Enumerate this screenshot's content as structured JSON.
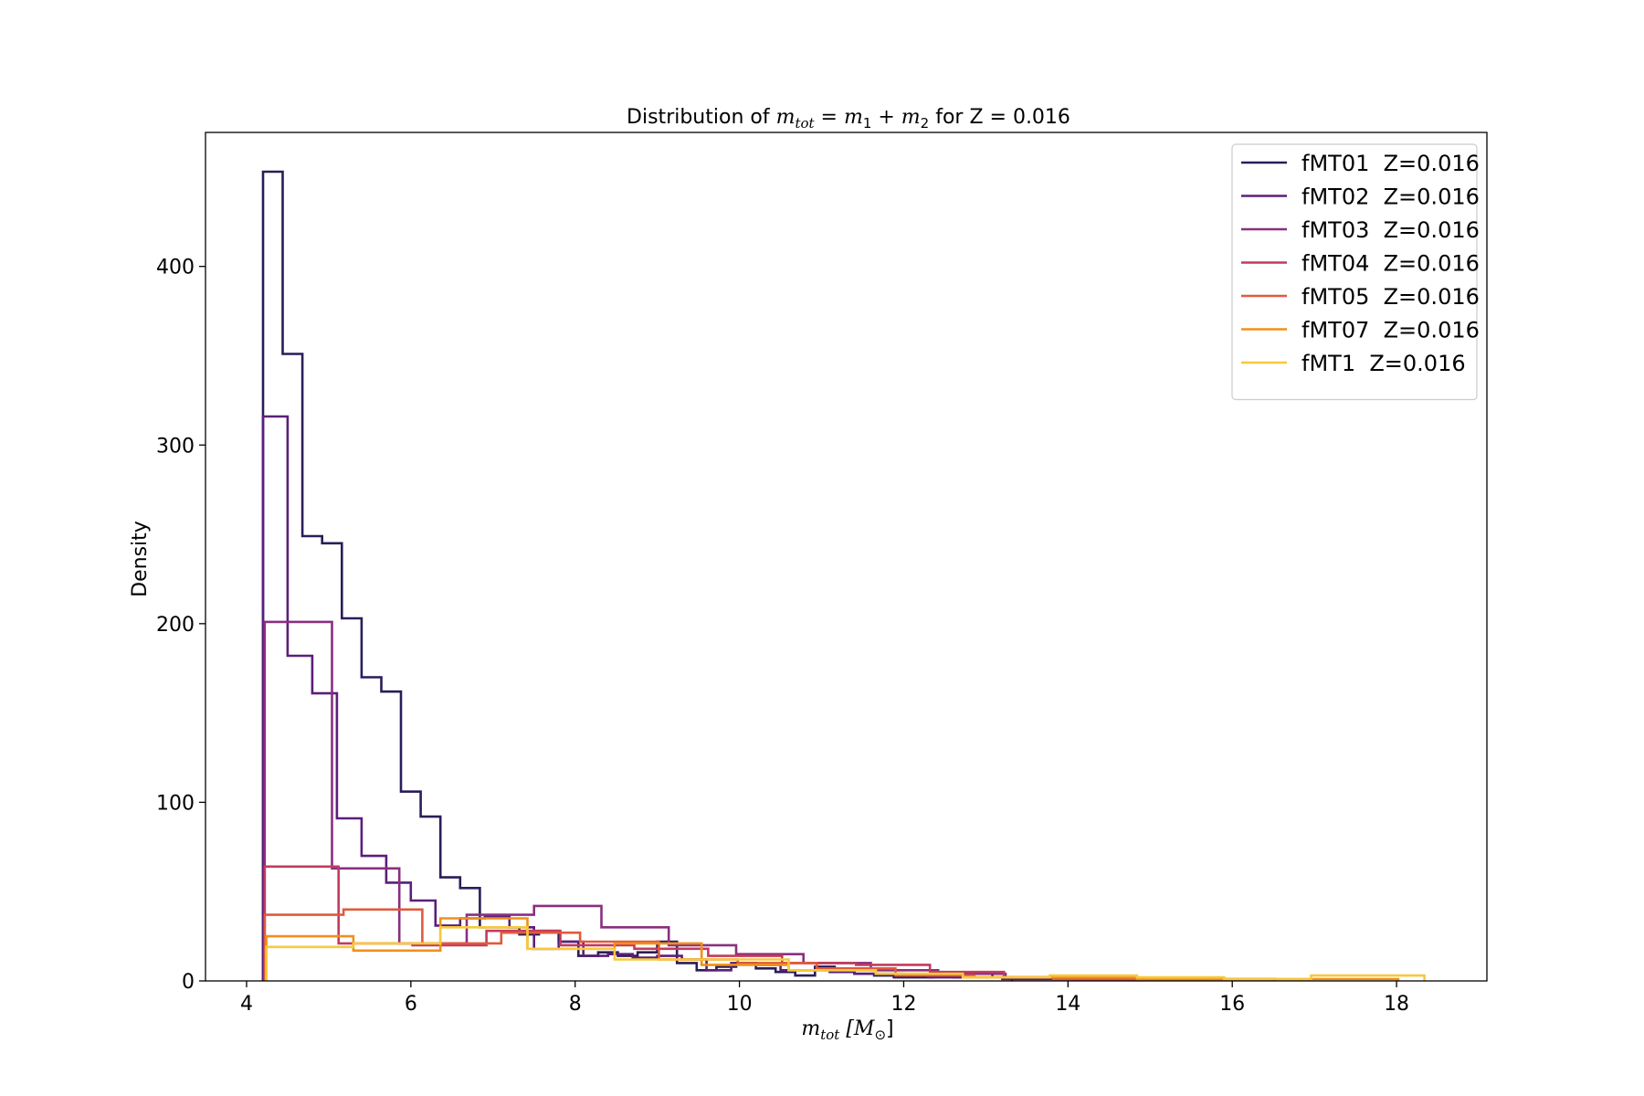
{
  "chart_data": {
    "type": "histogram-step",
    "title": {
      "prefix": "Distribution of ",
      "math": "m",
      "math_sub": "tot",
      "math_eq": " = m",
      "m1_sub": "1",
      "plus": " + m",
      "m2_sub": "2",
      "suffix": " for Z = 0.016"
    },
    "xlabel": {
      "main": "m",
      "sub": "tot",
      "unit": " [M",
      "unit_sub": "⊙",
      "close": "]"
    },
    "ylabel": "Density",
    "xlim": [
      3.5,
      19.1
    ],
    "ylim": [
      0,
      475
    ],
    "xticks": [
      4,
      6,
      8,
      10,
      12,
      14,
      16,
      18
    ],
    "yticks": [
      0,
      100,
      200,
      300,
      400
    ],
    "legend_position": "top-right",
    "series": [
      {
        "name": "fMT01  Z=0.016",
        "color": "#2b1d59",
        "edges": [
          4.2,
          4.44,
          4.68,
          4.92,
          5.16,
          5.4,
          5.64,
          5.88,
          6.12,
          6.36,
          6.6,
          6.84,
          7.08,
          7.32,
          7.56,
          7.8,
          8.04,
          8.28,
          8.52,
          8.76,
          9.0,
          9.24,
          9.48,
          9.72,
          9.96,
          10.2,
          10.44,
          10.68,
          10.92,
          11.16,
          11.4,
          11.64,
          11.88,
          12.12,
          12.36,
          12.6,
          12.84,
          13.08,
          13.32
        ],
        "values": [
          453,
          351,
          249,
          245,
          203,
          170,
          162,
          106,
          92,
          58,
          52,
          30,
          30,
          26,
          28,
          22,
          14,
          16,
          14,
          16,
          22,
          10,
          6,
          8,
          10,
          7,
          5,
          3,
          8,
          6,
          4,
          3,
          2,
          2,
          3,
          2,
          4,
          2
        ]
      },
      {
        "name": "fMT02  Z=0.016",
        "color": "#5a1f7a",
        "edges": [
          4.2,
          4.5,
          4.8,
          5.1,
          5.4,
          5.7,
          6.0,
          6.3,
          6.6,
          6.9,
          7.2,
          7.5,
          7.8,
          8.1,
          8.4,
          8.7,
          9.0,
          9.3,
          9.6,
          9.9,
          10.2,
          10.5,
          10.8,
          11.1,
          11.4,
          11.7,
          12.0,
          12.3,
          12.6,
          12.9,
          13.2,
          13.5,
          13.8,
          14.1,
          14.4,
          14.7,
          15.0,
          15.3,
          15.6
        ],
        "values": [
          316,
          182,
          161,
          91,
          70,
          55,
          45,
          31,
          35,
          36,
          30,
          18,
          22,
          14,
          15,
          13,
          14,
          12,
          6,
          10,
          9,
          6,
          6,
          5,
          4,
          4,
          3,
          2,
          2,
          2,
          1,
          1,
          1,
          1,
          1,
          1,
          1,
          1
        ]
      },
      {
        "name": "fMT03  Z=0.016",
        "color": "#8a2f7f",
        "edges": [
          4.22,
          5.04,
          5.86,
          6.68,
          7.5,
          8.32,
          9.14,
          9.96,
          10.78,
          11.6,
          12.42,
          13.24,
          14.06,
          14.88,
          15.7,
          16.52
        ],
        "values": [
          201,
          63,
          21,
          37,
          42,
          30,
          20,
          15,
          10,
          6,
          4,
          2,
          1,
          1,
          1
        ]
      },
      {
        "name": "fMT04  Z=0.016",
        "color": "#c23b5e",
        "edges": [
          4.22,
          5.12,
          6.02,
          6.92,
          7.82,
          8.72,
          9.62,
          10.52,
          11.42,
          12.32,
          13.22,
          14.12,
          15.02,
          15.92
        ],
        "values": [
          64,
          21,
          20,
          28,
          20,
          18,
          14,
          10,
          9,
          5,
          2,
          1,
          1
        ]
      },
      {
        "name": "fMT05  Z=0.016",
        "color": "#e05a3c",
        "edges": [
          4.22,
          5.18,
          6.14,
          7.1,
          8.06,
          9.02,
          9.98,
          10.94,
          11.9,
          12.86,
          13.82,
          14.78,
          15.74
        ],
        "values": [
          37,
          40,
          21,
          27,
          22,
          12,
          10,
          7,
          3,
          2,
          1,
          1
        ]
      },
      {
        "name": "fMT07  Z=0.016",
        "color": "#f0901a",
        "edges": [
          4.24,
          5.3,
          6.36,
          7.42,
          8.48,
          9.54,
          10.6,
          11.66,
          12.72,
          13.78,
          14.84,
          15.9,
          16.96,
          18.02
        ],
        "values": [
          25,
          17,
          35,
          18,
          21,
          9,
          6,
          4,
          2,
          2,
          1,
          1,
          1
        ]
      },
      {
        "name": "fMT1  Z=0.016",
        "color": "#f7c93a",
        "edges": [
          4.24,
          5.3,
          6.36,
          7.42,
          8.48,
          9.54,
          10.6,
          11.66,
          12.72,
          13.78,
          14.84,
          15.9,
          16.96,
          18.34
        ],
        "values": [
          19,
          21,
          30,
          18,
          12,
          12,
          6,
          4,
          2,
          3,
          2,
          1,
          3
        ]
      }
    ]
  }
}
